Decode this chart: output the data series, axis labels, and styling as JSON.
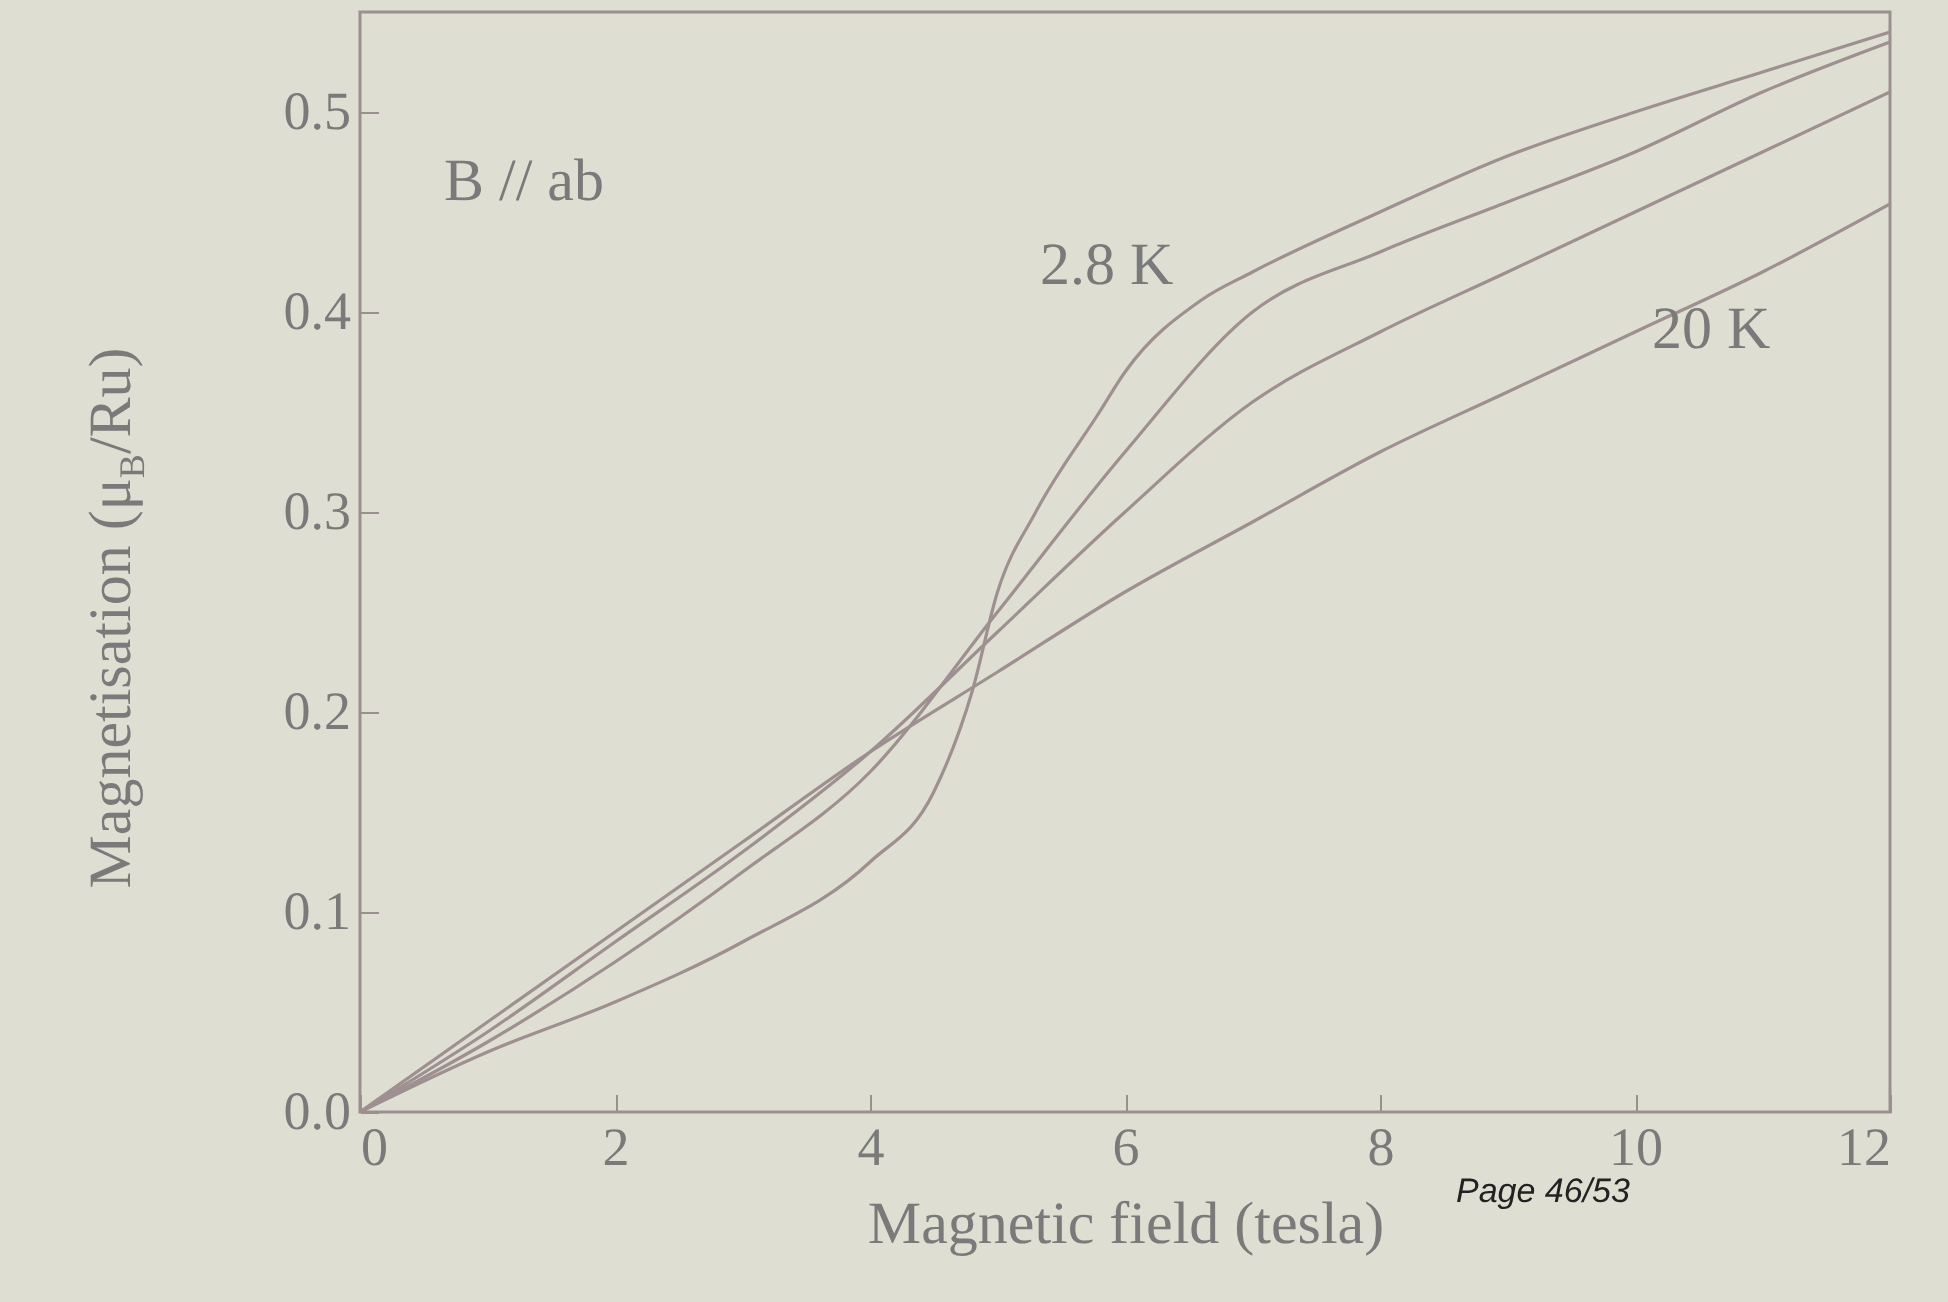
{
  "chart_data": {
    "type": "line",
    "xlabel": "Magnetic field (tesla)",
    "ylabel": "Magnetisation (μ$_{B}$/Ru)",
    "xlim": [
      0,
      12
    ],
    "xticks": [
      0,
      2,
      4,
      6,
      8,
      10,
      12
    ],
    "ylim": [
      0,
      0.55
    ],
    "yticks": [
      {
        "value": 0,
        "label": "0.0"
      },
      0.1,
      0.2,
      0.3,
      0.4,
      0.5
    ],
    "grid": false,
    "series": [
      {
        "color": "#9e9090",
        "x": [
          0,
          1,
          2,
          3,
          4,
          4.5,
          4.8,
          5,
          5.3,
          5.8,
          6,
          6.6,
          7,
          8,
          9,
          10,
          11,
          12
        ],
        "values": [
          0,
          0.03,
          0.055,
          0.085,
          0.125,
          0.16,
          0.21,
          0.26,
          0.3,
          0.35,
          0.37,
          0.406,
          0.42,
          0.45,
          0.478,
          0.5,
          0.52,
          0.54
        ]
      },
      {
        "color": "#9e9090",
        "x": [
          0,
          1,
          2,
          3,
          4,
          5,
          6,
          7,
          8,
          9,
          10,
          11,
          12
        ],
        "values": [
          0,
          0.035,
          0.075,
          0.12,
          0.17,
          0.25,
          0.33,
          0.4,
          0.43,
          0.455,
          0.48,
          0.51,
          0.535
        ]
      },
      {
        "color": "#9e9090",
        "x": [
          0,
          1,
          2,
          3,
          4,
          5,
          6,
          7,
          8,
          9,
          10,
          11,
          12
        ],
        "values": [
          0,
          0.04,
          0.085,
          0.13,
          0.18,
          0.24,
          0.3,
          0.355,
          0.39,
          0.42,
          0.45,
          0.48,
          0.51
        ]
      },
      {
        "color": "#9e9090",
        "x": [
          0,
          1,
          2,
          3,
          4,
          5,
          6,
          7,
          8,
          9,
          10,
          11,
          12
        ],
        "values": [
          0,
          0.045,
          0.09,
          0.135,
          0.18,
          0.22,
          0.26,
          0.295,
          0.33,
          0.36,
          0.39,
          0.42,
          0.454
        ]
      }
    ],
    "annotations": [
      "B // ab",
      "2.8 K",
      "20 K",
      "Page 46/53"
    ]
  }
}
